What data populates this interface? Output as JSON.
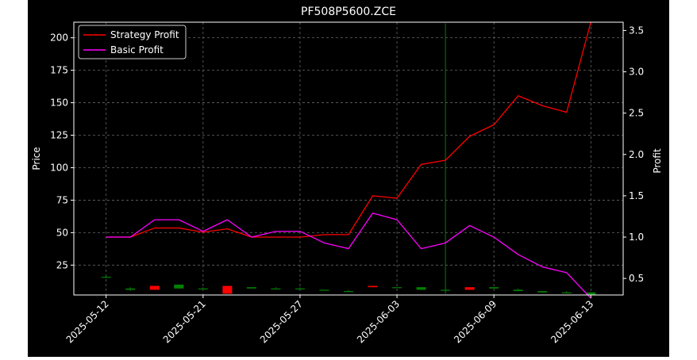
{
  "chart_data": {
    "type": "candlestick+line",
    "title": "PF508P5600.ZCE",
    "ylabel_left": "Price",
    "ylabel_right": "Profit",
    "ylim_left": [
      2,
      212
    ],
    "ylim_right": [
      0.3,
      3.6
    ],
    "left_ticks": [
      25,
      50,
      75,
      100,
      125,
      150,
      175,
      200
    ],
    "right_ticks": [
      0.5,
      1.0,
      1.5,
      2.0,
      2.5,
      3.0,
      3.5
    ],
    "left_tick_labels": [
      "25",
      "50",
      "75",
      "100",
      "125",
      "150",
      "175",
      "200"
    ],
    "right_tick_labels": [
      "0.5",
      "1.0",
      "1.5",
      "2.0",
      "2.5",
      "3.0",
      "3.5"
    ],
    "x_tick_labels": [
      "2025-05-12",
      "2025-05-21",
      "2025-05-27",
      "2025-06-03",
      "2025-06-09",
      "2025-06-13"
    ],
    "x_tick_indices": [
      0,
      6,
      12,
      18,
      24,
      30
    ],
    "grid": true,
    "legend_position": "top-left",
    "candles": [
      {
        "open": 16,
        "close": 16,
        "high": 17,
        "low": 15
      },
      {
        "open": 6,
        "close": 7,
        "high": 8,
        "low": 5
      },
      {
        "open": 9,
        "close": 6,
        "high": 9,
        "low": 6
      },
      {
        "open": 7,
        "close": 10,
        "high": 10,
        "low": 7
      },
      {
        "open": 7,
        "close": 7,
        "high": 8,
        "low": 7
      },
      {
        "open": 9,
        "close": 3,
        "high": 9,
        "low": 3
      },
      {
        "open": 7,
        "close": 8,
        "high": 8,
        "low": 7
      },
      {
        "open": 7,
        "close": 7,
        "high": 8,
        "low": 7
      },
      {
        "open": 7,
        "close": 7,
        "high": 8,
        "low": 7
      },
      {
        "open": 6,
        "close": 6,
        "high": 6,
        "low": 6
      },
      {
        "open": 5,
        "close": 5,
        "high": 6,
        "low": 5
      },
      {
        "open": 9,
        "close": 8,
        "high": 9,
        "low": 8
      },
      {
        "open": 8,
        "close": 8,
        "high": 8,
        "low": 8
      },
      {
        "open": 6,
        "close": 8,
        "high": 8,
        "low": 6
      },
      {
        "open": 6,
        "close": 6,
        "high": 211,
        "low": 3
      },
      {
        "open": 8,
        "close": 6,
        "high": 8,
        "low": 6
      },
      {
        "open": 7,
        "close": 8,
        "high": 8,
        "low": 7
      },
      {
        "open": 5,
        "close": 6,
        "high": 7,
        "low": 5
      },
      {
        "open": 4,
        "close": 5,
        "high": 5,
        "low": 4
      },
      {
        "open": 4,
        "close": 4,
        "high": 5,
        "low": 4
      },
      {
        "open": 2,
        "close": 4,
        "high": 4,
        "low": 2
      }
    ],
    "candle_x_positions": [
      0,
      1.5,
      3,
      4.5,
      6,
      7.5,
      9,
      10.5,
      12,
      13.5,
      15,
      16.5,
      18,
      19.5,
      21,
      22.5,
      24,
      25.5,
      27,
      28.5,
      30
    ],
    "series": [
      {
        "name": "Strategy Profit",
        "color": "#ff0000",
        "x": [
          0,
          1.5,
          3,
          4.5,
          6,
          7.5,
          9,
          10.5,
          12,
          13.5,
          15,
          16.5,
          18,
          19.5,
          21,
          22.5,
          24,
          25.5,
          27,
          28.5,
          30
        ],
        "values": [
          1.0,
          1.0,
          1.11,
          1.11,
          1.06,
          1.1,
          1.0,
          1.0,
          1.0,
          1.03,
          1.03,
          1.5,
          1.47,
          1.88,
          1.93,
          2.22,
          2.36,
          2.71,
          2.59,
          2.51,
          3.6
        ]
      },
      {
        "name": "Basic Profit",
        "color": "#ff00ff",
        "x": [
          0,
          1.5,
          3,
          4.5,
          6,
          7.5,
          9,
          10.5,
          12,
          13.5,
          15,
          16.5,
          18,
          19.5,
          21,
          22.5,
          24,
          25.5,
          27,
          28.5,
          30
        ],
        "values": [
          1.0,
          1.0,
          1.21,
          1.21,
          1.07,
          1.21,
          1.0,
          1.07,
          1.07,
          0.93,
          0.86,
          1.29,
          1.21,
          0.86,
          0.93,
          1.14,
          1.0,
          0.79,
          0.64,
          0.57,
          0.26
        ]
      }
    ]
  },
  "colors": {
    "background": "#000000",
    "up": "#008000",
    "down": "#ff0000",
    "text": "#ffffff",
    "grid": "#666666"
  }
}
